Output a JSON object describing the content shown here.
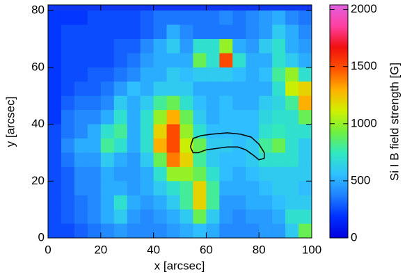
{
  "chart_data": {
    "type": "heatmap",
    "xlabel": "x [arcsec]",
    "ylabel": "y [arcsec]",
    "colorbar_label": "Si I B field strength [G]",
    "x": [
      2.5,
      7.5,
      12.5,
      17.5,
      22.5,
      27.5,
      32.5,
      37.5,
      42.5,
      47.5,
      52.5,
      57.5,
      62.5,
      67.5,
      72.5,
      77.5,
      82.5,
      87.5,
      92.5,
      97.5
    ],
    "y": [
      77.5,
      72.5,
      67.5,
      62.5,
      57.5,
      52.5,
      47.5,
      42.5,
      37.5,
      32.5,
      27.5,
      22.5,
      17.5,
      12.5,
      7.5,
      2.5
    ],
    "values": [
      [
        200,
        200,
        200,
        250,
        250,
        250,
        250,
        300,
        350,
        350,
        350,
        350,
        350,
        400,
        350,
        400,
        450,
        500,
        400,
        350
      ],
      [
        200,
        250,
        250,
        250,
        250,
        250,
        250,
        300,
        350,
        500,
        400,
        350,
        350,
        350,
        350,
        400,
        450,
        600,
        500,
        400
      ],
      [
        200,
        250,
        250,
        250,
        250,
        300,
        300,
        400,
        500,
        600,
        450,
        700,
        700,
        1000,
        500,
        450,
        600,
        700,
        500,
        450
      ],
      [
        200,
        250,
        250,
        250,
        250,
        300,
        350,
        450,
        500,
        500,
        500,
        900,
        700,
        1500,
        700,
        500,
        500,
        700,
        600,
        500
      ],
      [
        200,
        250,
        250,
        300,
        300,
        350,
        400,
        500,
        500,
        600,
        550,
        600,
        600,
        600,
        550,
        500,
        550,
        800,
        1000,
        700
      ],
      [
        200,
        250,
        300,
        300,
        350,
        450,
        550,
        500,
        600,
        600,
        600,
        500,
        500,
        500,
        500,
        500,
        500,
        700,
        1100,
        1200
      ],
      [
        200,
        300,
        350,
        350,
        400,
        600,
        500,
        600,
        800,
        900,
        700,
        550,
        500,
        550,
        500,
        500,
        600,
        650,
        800,
        1300
      ],
      [
        200,
        350,
        400,
        400,
        500,
        700,
        500,
        700,
        1000,
        1300,
        900,
        600,
        500,
        550,
        550,
        550,
        650,
        700,
        700,
        900
      ],
      [
        250,
        350,
        400,
        500,
        700,
        800,
        500,
        700,
        1200,
        1500,
        1000,
        700,
        550,
        550,
        550,
        550,
        700,
        750,
        700,
        700
      ],
      [
        250,
        400,
        500,
        500,
        800,
        700,
        500,
        700,
        1300,
        1500,
        1100,
        900,
        600,
        600,
        550,
        600,
        800,
        900,
        700,
        600
      ],
      [
        250,
        350,
        450,
        450,
        600,
        500,
        450,
        600,
        900,
        1400,
        1200,
        800,
        600,
        550,
        550,
        600,
        700,
        700,
        700,
        600
      ],
      [
        250,
        300,
        400,
        400,
        500,
        450,
        450,
        500,
        700,
        1000,
        1000,
        900,
        700,
        550,
        500,
        550,
        600,
        600,
        600,
        600
      ],
      [
        250,
        300,
        400,
        400,
        500,
        500,
        450,
        500,
        600,
        700,
        800,
        1200,
        800,
        500,
        500,
        500,
        550,
        600,
        600,
        550
      ],
      [
        250,
        300,
        350,
        400,
        500,
        700,
        500,
        450,
        500,
        600,
        800,
        1200,
        800,
        450,
        450,
        500,
        500,
        550,
        600,
        600
      ],
      [
        250,
        300,
        350,
        400,
        500,
        600,
        450,
        400,
        450,
        500,
        600,
        900,
        600,
        450,
        400,
        450,
        450,
        500,
        700,
        700
      ],
      [
        250,
        250,
        300,
        350,
        400,
        450,
        400,
        400,
        400,
        450,
        500,
        550,
        500,
        400,
        400,
        400,
        450,
        450,
        600,
        900
      ]
    ],
    "contour": {
      "color": "#000000",
      "x": [
        54,
        55,
        58,
        62,
        68,
        73,
        77,
        80,
        82,
        82,
        80,
        78,
        75,
        72,
        68,
        64,
        60,
        57,
        55,
        54
      ],
      "y": [
        32,
        35,
        36,
        36.5,
        37,
        36.5,
        35.5,
        33,
        30,
        28,
        27.5,
        29,
        31,
        32,
        32,
        31.5,
        31,
        30,
        30,
        32
      ]
    },
    "xlim": [
      0,
      100
    ],
    "ylim": [
      0,
      82
    ],
    "zlim": [
      0,
      2040
    ],
    "xticks": [
      0,
      20,
      40,
      60,
      80,
      100
    ],
    "yticks": [
      0,
      20,
      40,
      60,
      80
    ],
    "zticks": [
      0,
      500,
      1000,
      1500,
      2000
    ],
    "colormap": [
      "#0000e0",
      "#0030ff",
      "#2080ff",
      "#30c0ff",
      "#30e8c0",
      "#70f040",
      "#d0f000",
      "#ffb000",
      "#ff5000",
      "#f01010",
      "#ff40a0",
      "#e060e0"
    ]
  }
}
